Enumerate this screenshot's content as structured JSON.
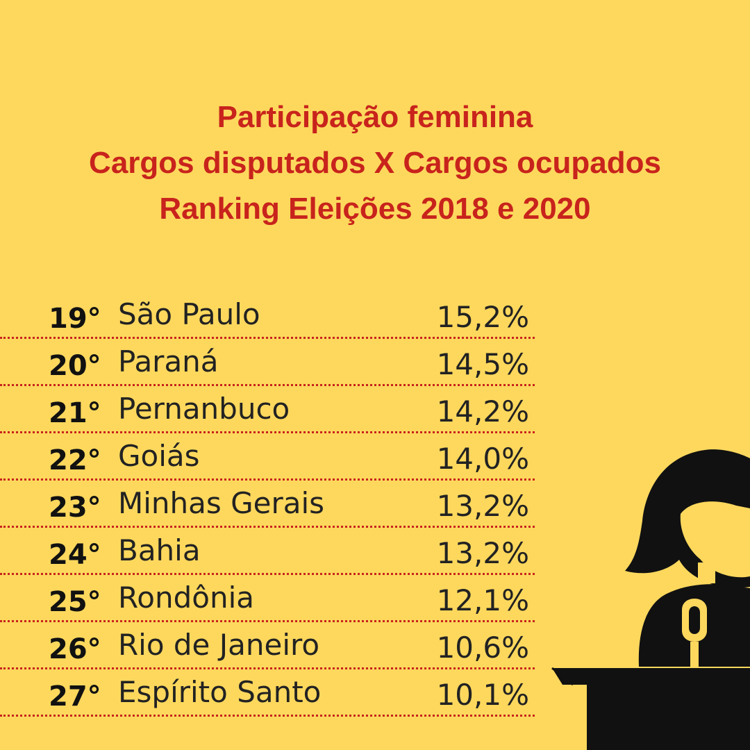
{
  "colors": {
    "background": "#fdd85d",
    "title": "#c8231c",
    "divider": "#c8231c",
    "text": "#222222",
    "silhouette": "#111111"
  },
  "title": {
    "line1": "Participação feminina",
    "line2": "Cargos disputados X Cargos ocupados",
    "line3": "Ranking Eleições 2018 e 2020"
  },
  "ranking": [
    {
      "rank": "19°",
      "state": "São Paulo",
      "percent": "15,2%"
    },
    {
      "rank": "20°",
      "state": "Paraná",
      "percent": "14,5%"
    },
    {
      "rank": "21°",
      "state": "Pernanbuco",
      "percent": "14,2%"
    },
    {
      "rank": "22°",
      "state": "Goiás",
      "percent": "14,0%"
    },
    {
      "rank": "23°",
      "state": "Minhas Gerais",
      "percent": "13,2%"
    },
    {
      "rank": "24°",
      "state": "Bahia",
      "percent": "13,2%"
    },
    {
      "rank": "25°",
      "state": "Rondônia",
      "percent": "12,1%"
    },
    {
      "rank": "26°",
      "state": "Rio de Janeiro",
      "percent": "10,6%"
    },
    {
      "rank": "27°",
      "state": "Espírito Santo",
      "percent": "10,1%"
    }
  ],
  "illustration": {
    "icon": "woman-speaker-at-podium-icon"
  }
}
